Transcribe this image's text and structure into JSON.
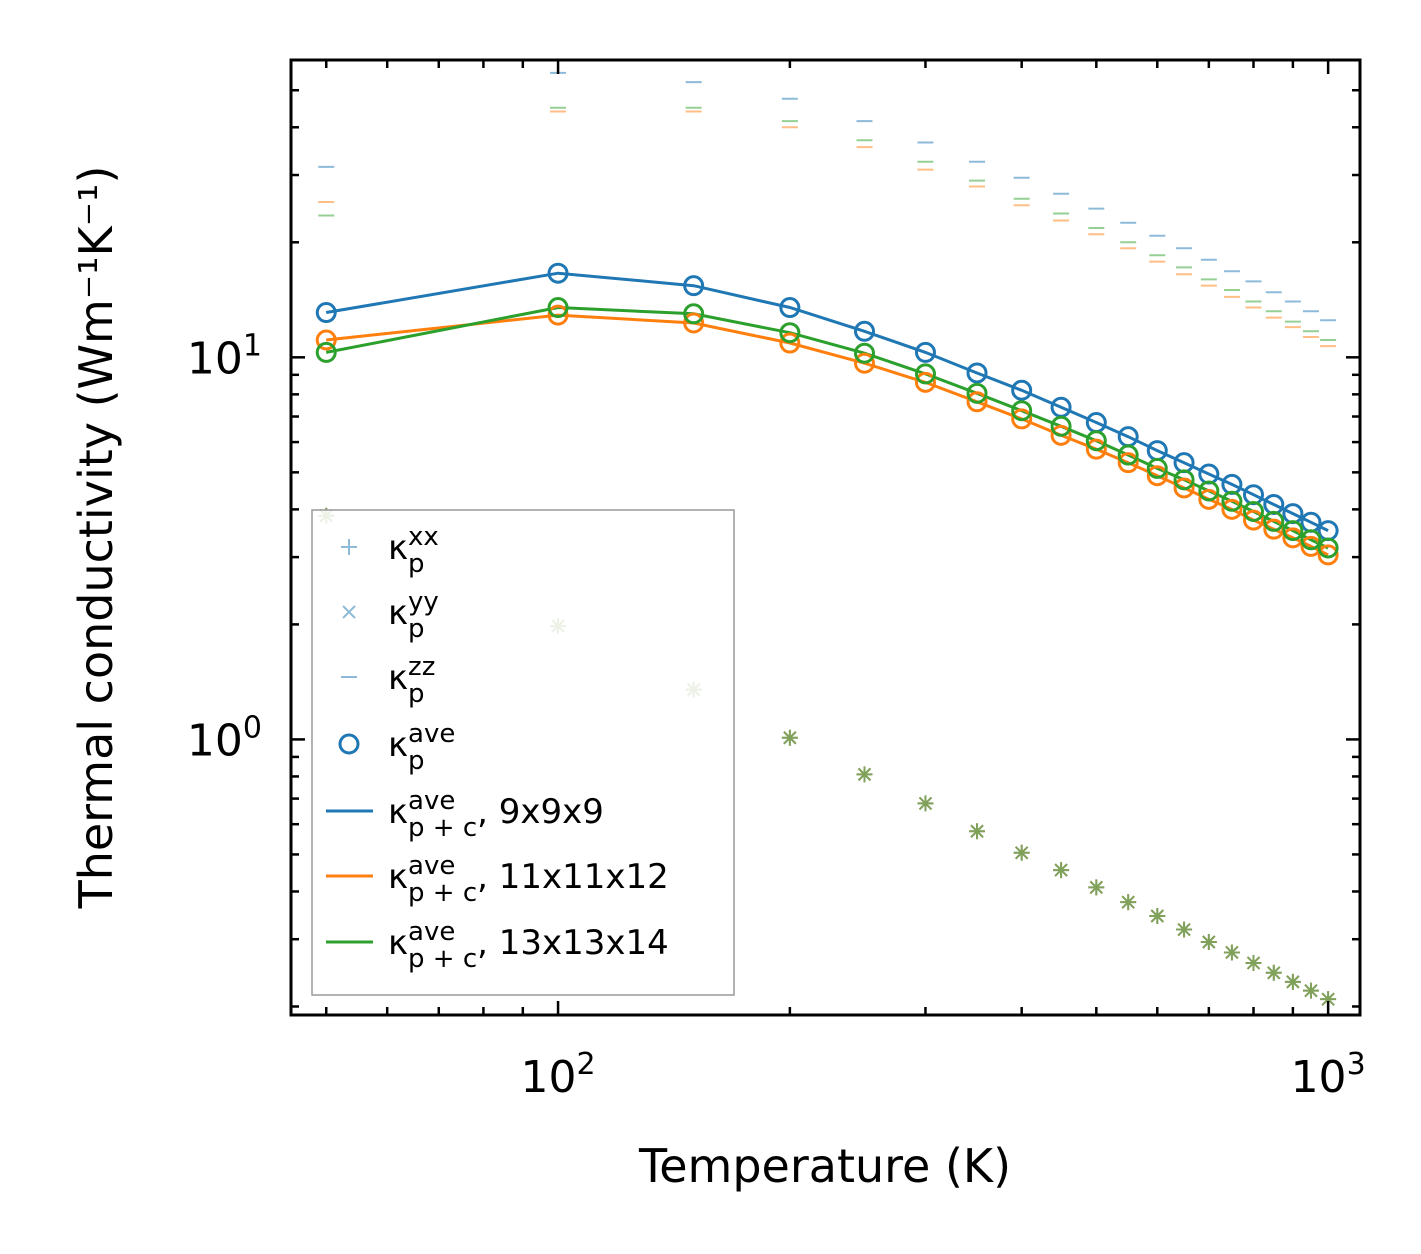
{
  "chart_data": {
    "type": "scatter",
    "title": "",
    "xlabel": "Temperature (K)",
    "ylabel": "Thermal conductivity (Wm⁻¹K⁻¹)",
    "xscale": "log",
    "yscale": "log",
    "xlim": [
      45,
      1100
    ],
    "ylim": [
      0.19,
      60
    ],
    "xticks": [
      {
        "value": 100,
        "base": "10",
        "exp": "2"
      },
      {
        "value": 1000,
        "base": "10",
        "exp": "3"
      }
    ],
    "yticks": [
      {
        "value": 1,
        "base": "10",
        "exp": "0"
      },
      {
        "value": 10,
        "base": "10",
        "exp": "1"
      }
    ],
    "legend_position": "lower-left",
    "temperatures": [
      50,
      100,
      150,
      200,
      250,
      300,
      350,
      400,
      450,
      500,
      550,
      600,
      650,
      700,
      750,
      800,
      850,
      900,
      950,
      1000
    ],
    "kappa_xy": [
      3.85,
      1.98,
      1.35,
      1.01,
      0.81,
      0.68,
      0.575,
      0.505,
      0.455,
      0.41,
      0.375,
      0.345,
      0.318,
      0.295,
      0.277,
      0.26,
      0.245,
      0.232,
      0.22,
      0.209
    ],
    "series": [
      {
        "name": "9x9x9",
        "color": "#1f77b4",
        "kzz": [
          31.5,
          55.5,
          52.5,
          47.5,
          41.5,
          36.5,
          32.5,
          29.5,
          26.8,
          24.5,
          22.5,
          20.8,
          19.3,
          18.0,
          16.8,
          15.8,
          14.8,
          14.0,
          13.2,
          12.5
        ],
        "kave": [
          13.1,
          16.6,
          15.4,
          13.5,
          11.7,
          10.3,
          9.1,
          8.2,
          7.4,
          6.75,
          6.2,
          5.7,
          5.3,
          4.95,
          4.65,
          4.37,
          4.12,
          3.9,
          3.7,
          3.52
        ]
      },
      {
        "name": "11x11x12",
        "color": "#ff7f0e",
        "kzz": [
          25.5,
          44.0,
          44.0,
          40.0,
          35.5,
          31.0,
          28.0,
          25.0,
          22.8,
          21.0,
          19.3,
          17.8,
          16.5,
          15.4,
          14.4,
          13.5,
          12.7,
          12.0,
          11.3,
          10.7
        ],
        "kave": [
          11.1,
          12.9,
          12.3,
          10.9,
          9.65,
          8.6,
          7.65,
          6.9,
          6.25,
          5.75,
          5.3,
          4.9,
          4.55,
          4.25,
          4.0,
          3.75,
          3.55,
          3.37,
          3.2,
          3.04
        ]
      },
      {
        "name": "13x13x14",
        "color": "#2ca02c",
        "kzz": [
          23.5,
          45.0,
          45.0,
          41.5,
          37.0,
          32.5,
          29.0,
          26.0,
          23.8,
          21.8,
          20.0,
          18.5,
          17.2,
          16.0,
          15.0,
          14.0,
          13.2,
          12.4,
          11.7,
          11.1
        ],
        "kave": [
          10.3,
          13.5,
          13.0,
          11.6,
          10.25,
          9.05,
          8.05,
          7.25,
          6.6,
          6.05,
          5.55,
          5.12,
          4.78,
          4.47,
          4.2,
          3.95,
          3.72,
          3.52,
          3.33,
          3.17
        ]
      }
    ],
    "legend": {
      "kappa": "κ",
      "entries": [
        {
          "id": "kxx",
          "sub": "p",
          "sup": "xx",
          "suffix": ""
        },
        {
          "id": "kyy",
          "sub": "p",
          "sup": "yy",
          "suffix": ""
        },
        {
          "id": "kzz",
          "sub": "p",
          "sup": "zz",
          "suffix": ""
        },
        {
          "id": "kave",
          "sub": "p",
          "sup": "ave",
          "suffix": ""
        },
        {
          "id": "line-9",
          "sub": "p + c",
          "sup": "ave",
          "suffix": ", 9x9x9"
        },
        {
          "id": "line-11",
          "sub": "p + c",
          "sup": "ave",
          "suffix": ", 11x11x12"
        },
        {
          "id": "line-13",
          "sub": "p + c",
          "sup": "ave",
          "suffix": ", 13x13x14"
        }
      ]
    }
  }
}
